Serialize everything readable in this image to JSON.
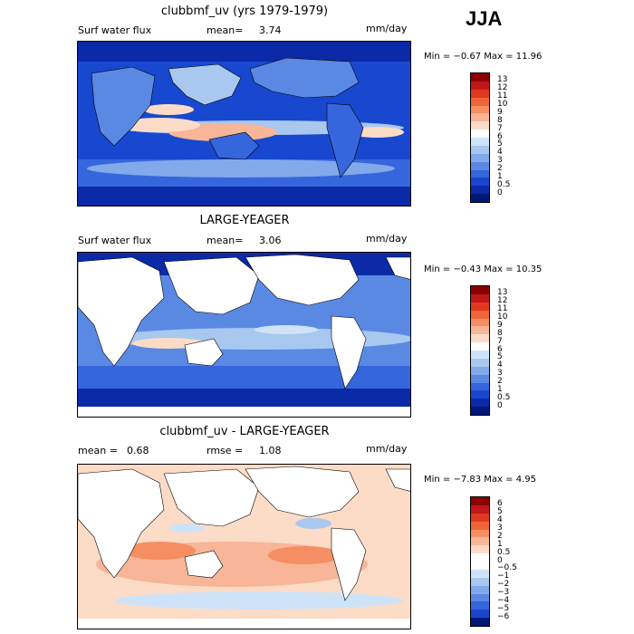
{
  "season": "JJA",
  "panels": [
    {
      "title": "clubbmf_uv (yrs 1979-1979)",
      "left_label": "Surf water flux",
      "center_label": "mean=",
      "center_value": "3.74",
      "units": "mm/day",
      "minmax": "Min =  −0.67 Max =  11.96",
      "colorbar": {
        "labels": [
          "13",
          "12",
          "11",
          "10",
          "9",
          "8",
          "7",
          "6",
          "5",
          "4",
          "3",
          "2",
          "1",
          "0.5",
          "0"
        ],
        "colors": [
          "#8b0000",
          "#c0171a",
          "#e0391f",
          "#f0643a",
          "#f58e63",
          "#f8b597",
          "#fcdcc6",
          "#ffffff",
          "#cfe3f8",
          "#a9c8f0",
          "#82aaea",
          "#5a89e4",
          "#3566dc",
          "#1a46cf",
          "#0a2aa8",
          "#001877"
        ]
      }
    },
    {
      "title": "LARGE-YEAGER",
      "left_label": "Surf water flux",
      "center_label": "mean=",
      "center_value": "3.06",
      "units": "mm/day",
      "minmax": "Min =  −0.43 Max =  10.35",
      "colorbar": {
        "labels": [
          "13",
          "12",
          "11",
          "10",
          "9",
          "8",
          "7",
          "6",
          "5",
          "4",
          "3",
          "2",
          "1",
          "0.5",
          "0"
        ],
        "colors": [
          "#8b0000",
          "#c0171a",
          "#e0391f",
          "#f0643a",
          "#f58e63",
          "#f8b597",
          "#fcdcc6",
          "#ffffff",
          "#cfe3f8",
          "#a9c8f0",
          "#82aaea",
          "#5a89e4",
          "#3566dc",
          "#1a46cf",
          "#0a2aa8",
          "#001877"
        ]
      }
    },
    {
      "title": "clubbmf_uv - LARGE-YEAGER",
      "left_label": "mean =",
      "left_value": "0.68",
      "center_label": "rmse =",
      "center_value": "1.08",
      "units": "mm/day",
      "minmax": "Min =  −7.83 Max =   4.95",
      "colorbar": {
        "labels": [
          "6",
          "5",
          "4",
          "3",
          "2",
          "1",
          "0.5",
          "0",
          "−0.5",
          "−1",
          "−2",
          "−3",
          "−4",
          "−5",
          "−6"
        ],
        "colors": [
          "#8b0000",
          "#c0171a",
          "#e0391f",
          "#f0643a",
          "#f58e63",
          "#f8b597",
          "#fcdcc6",
          "#ffffff",
          "#ffffff",
          "#cfe3f8",
          "#a9c8f0",
          "#82aaea",
          "#5a89e4",
          "#3566dc",
          "#1a46cf",
          "#001877"
        ]
      }
    }
  ]
}
